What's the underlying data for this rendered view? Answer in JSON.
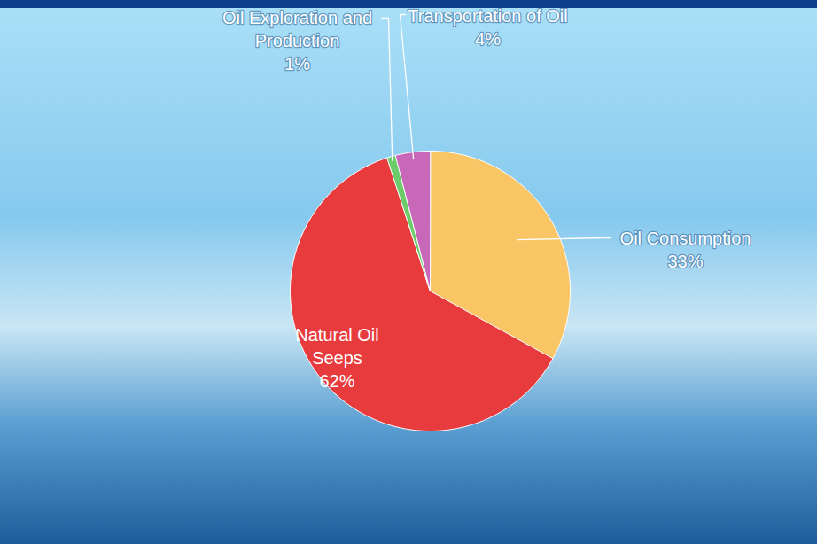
{
  "chart_data": {
    "type": "pie",
    "categories": [
      "Oil Consumption",
      "Natural Oil Seeps",
      "Oil Exploration and Production",
      "Transportation of Oil"
    ],
    "values": [
      33,
      62,
      1,
      4
    ],
    "value_labels": [
      "33%",
      "62%",
      "1%",
      "4%"
    ],
    "colors": [
      "#f9c565",
      "#e83b3d",
      "#6dcc6a",
      "#c967b9"
    ],
    "data_labels": true
  }
}
